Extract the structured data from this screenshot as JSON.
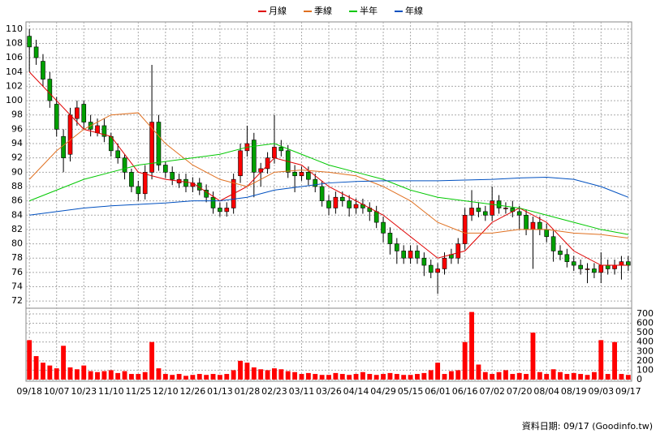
{
  "chart_data": [
    {
      "type": "candlestick",
      "grid": true,
      "candles": {
        "open": [
          109,
          107.5,
          105.5,
          103,
          99.5,
          95,
          92.5,
          97.5,
          99.5,
          97,
          95.5,
          96.5,
          95,
          93,
          92,
          90,
          88,
          87,
          90,
          97,
          91,
          90,
          88.5,
          89,
          88,
          88.5,
          87.5,
          86.5,
          85,
          84.5,
          85,
          89.5,
          93,
          94.5,
          90,
          90.5,
          92,
          93.5,
          93,
          90,
          89.5,
          90,
          89,
          88,
          86,
          85,
          86.5,
          86,
          85,
          85.5,
          85,
          84.5,
          83,
          81.5,
          80,
          79,
          78,
          79,
          78,
          77,
          76,
          76.5,
          78.5,
          78,
          80,
          84,
          85,
          84.5,
          84,
          86,
          85,
          85,
          84.5,
          84,
          82,
          83,
          82,
          81,
          79,
          78.5,
          77.5,
          77,
          76.5,
          76.5,
          76,
          77,
          76.5,
          77,
          77.5
        ],
        "high": [
          110,
          108.5,
          106.5,
          104,
          100.5,
          96,
          99,
          100,
          100,
          98,
          97.5,
          97.5,
          95.5,
          94,
          92.5,
          90.5,
          88.8,
          91,
          105,
          98,
          91.5,
          90.8,
          89.8,
          89.8,
          89.3,
          89.2,
          88.3,
          87.3,
          85.8,
          85.8,
          89.8,
          94,
          96.5,
          95.5,
          91.3,
          92.8,
          98,
          94.5,
          93.8,
          91,
          90.8,
          90.8,
          89.8,
          88.8,
          86.8,
          87.3,
          87.3,
          86.8,
          86.3,
          86.3,
          85.8,
          85.3,
          83.8,
          82.3,
          80.8,
          79.8,
          79.8,
          79.8,
          78.8,
          77.8,
          77.3,
          78.8,
          79.3,
          80.8,
          85,
          87.5,
          85.8,
          85.3,
          88,
          86.8,
          85.8,
          86,
          85.3,
          84.8,
          83.8,
          83.8,
          82.8,
          81.8,
          79.8,
          79.3,
          78.3,
          77.8,
          77.3,
          77.3,
          78.8,
          77.8,
          77.8,
          78.3,
          78.3
        ],
        "low": [
          104,
          105,
          102,
          99,
          95,
          90,
          91.5,
          96.5,
          96,
          95,
          95,
          94.2,
          92.2,
          91.2,
          89,
          87.2,
          86,
          86.2,
          89,
          90.2,
          89.2,
          88.2,
          87.8,
          87.2,
          87.2,
          86.8,
          85.8,
          84.2,
          83.8,
          83.8,
          84.2,
          88.5,
          92.2,
          86.5,
          88,
          89.8,
          91.2,
          92.2,
          89.2,
          87.2,
          88.8,
          88.2,
          87.2,
          85.2,
          84,
          84.2,
          85.2,
          83.8,
          84.2,
          84.2,
          83.2,
          82.2,
          80.2,
          78.5,
          77.2,
          77.2,
          77.2,
          77.2,
          75.5,
          75.2,
          73,
          75.7,
          77.2,
          77.2,
          79.2,
          83.2,
          83.7,
          83.2,
          83.2,
          84.2,
          84.2,
          83.7,
          82,
          81.2,
          76.5,
          81.2,
          80.2,
          77.5,
          77.7,
          76.7,
          76.2,
          75.7,
          74.5,
          75.2,
          74.5,
          75.7,
          75.7,
          75,
          76.2
        ],
        "close": [
          107.5,
          106,
          103,
          100,
          96,
          92,
          98,
          99,
          97,
          96,
          96.5,
          95,
          93,
          92,
          90,
          88,
          87,
          90,
          97,
          91,
          90,
          89,
          89,
          88,
          88.5,
          87.5,
          86.5,
          85,
          84.5,
          85,
          89,
          93,
          94,
          90,
          90.5,
          92,
          93.5,
          93,
          90,
          89.5,
          90,
          89,
          88,
          86,
          85,
          86.5,
          86,
          85,
          85.5,
          85,
          84.5,
          83,
          81.5,
          80,
          79,
          78,
          79,
          78,
          77,
          76,
          76.5,
          78,
          78,
          80,
          84,
          85,
          84.5,
          84,
          86,
          85,
          85,
          84.5,
          84,
          82,
          83,
          82,
          81,
          79,
          78.5,
          77.5,
          77,
          76.5,
          76.5,
          76,
          77,
          76.5,
          77,
          77.5,
          77
        ]
      },
      "up_color": "#ff0000",
      "down_color": "#00a000",
      "ma_x": [
        0,
        4,
        8,
        12,
        16,
        20,
        24,
        28,
        32,
        36,
        40,
        44,
        48,
        52,
        56,
        60,
        64,
        68,
        72,
        76,
        80,
        84,
        88
      ],
      "series": [
        {
          "name": "月線",
          "color": "#e00000",
          "values": [
            104,
            100,
            96,
            95,
            90,
            89,
            88.5,
            86,
            88,
            92,
            91,
            88,
            86,
            84,
            81,
            78,
            79,
            83,
            85,
            83,
            79,
            77,
            77
          ]
        },
        {
          "name": "季線",
          "color": "#e07020",
          "values": [
            89,
            93,
            96,
            98,
            98.3,
            94,
            91,
            89,
            88,
            90,
            90.3,
            90,
            89.5,
            88,
            86,
            83,
            81.5,
            81.5,
            82,
            82,
            81.5,
            81.3,
            80.8
          ]
        },
        {
          "name": "半年",
          "color": "#00c800",
          "values": [
            86,
            87.5,
            89,
            90,
            91,
            91.5,
            92,
            92.5,
            93.5,
            94,
            92.5,
            91,
            90,
            89,
            87.5,
            86.5,
            86,
            85.5,
            85,
            84,
            83,
            82,
            81.3
          ]
        },
        {
          "name": "年線",
          "color": "#0050c0",
          "values": [
            84,
            84.5,
            85,
            85.3,
            85.5,
            85.7,
            86,
            86,
            86.5,
            87.5,
            88,
            88.5,
            88.7,
            88.8,
            88.8,
            88.8,
            88.9,
            89,
            89.2,
            89.3,
            89,
            88,
            86.5
          ]
        }
      ],
      "ylim": [
        71,
        111
      ],
      "yticks": [
        72,
        74,
        76,
        78,
        80,
        82,
        84,
        86,
        88,
        90,
        92,
        94,
        96,
        98,
        100,
        102,
        104,
        106,
        108,
        110
      ],
      "xlim": [
        -0.5,
        88.5
      ],
      "xticks": [
        {
          "value": 0,
          "label": "09/18"
        },
        {
          "value": 4,
          "label": "10/07"
        },
        {
          "value": 8,
          "label": "10/23"
        },
        {
          "value": 12,
          "label": "11/10"
        },
        {
          "value": 16,
          "label": "11/25"
        },
        {
          "value": 20,
          "label": "12/10"
        },
        {
          "value": 24,
          "label": "12/26"
        },
        {
          "value": 28,
          "label": "01/13"
        },
        {
          "value": 32,
          "label": "01/28"
        },
        {
          "value": 36,
          "label": "02/23"
        },
        {
          "value": 40,
          "label": "03/11"
        },
        {
          "value": 44,
          "label": "03/26"
        },
        {
          "value": 48,
          "label": "04/14"
        },
        {
          "value": 52,
          "label": "04/29"
        },
        {
          "value": 56,
          "label": "05/15"
        },
        {
          "value": 60,
          "label": "06/01"
        },
        {
          "value": 64,
          "label": "06/16"
        },
        {
          "value": 68,
          "label": "07/02"
        },
        {
          "value": 72,
          "label": "07/20"
        },
        {
          "value": 76,
          "label": "08/04"
        },
        {
          "value": 80,
          "label": "08/19"
        },
        {
          "value": 84,
          "label": "09/03"
        },
        {
          "value": 88,
          "label": "09/17"
        }
      ]
    },
    {
      "type": "bar",
      "color": "#ff0000",
      "grid": true,
      "values": [
        420,
        250,
        180,
        150,
        120,
        360,
        130,
        110,
        150,
        90,
        80,
        90,
        100,
        70,
        90,
        60,
        60,
        80,
        400,
        120,
        60,
        50,
        60,
        40,
        50,
        60,
        50,
        60,
        50,
        60,
        100,
        200,
        180,
        130,
        110,
        100,
        120,
        110,
        90,
        80,
        60,
        70,
        60,
        50,
        50,
        70,
        60,
        50,
        60,
        80,
        60,
        50,
        60,
        70,
        60,
        50,
        50,
        60,
        70,
        100,
        180,
        60,
        90,
        100,
        400,
        720,
        160,
        80,
        60,
        80,
        100,
        60,
        70,
        60,
        500,
        80,
        60,
        110,
        80,
        60,
        70,
        60,
        50,
        80,
        420,
        60,
        400,
        60,
        50
      ],
      "ylim": [
        0,
        760
      ],
      "yticks": [
        0,
        100,
        200,
        300,
        400,
        500,
        600,
        700
      ]
    }
  ],
  "footer": "資料日期: 09/17 (Goodinfo.tw)"
}
